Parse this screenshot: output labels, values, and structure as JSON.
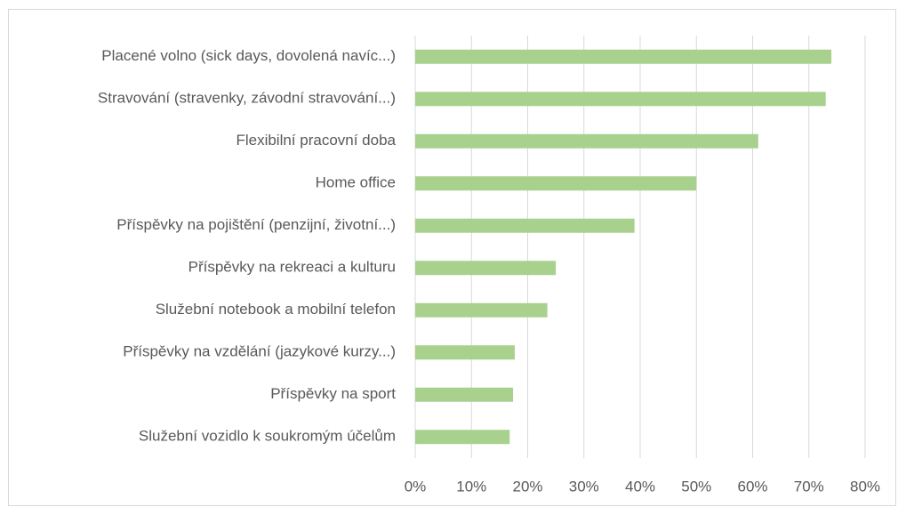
{
  "chart_data": {
    "type": "hbar",
    "categories": [
      "Placené volno (sick days, dovolená navíc...)",
      "Stravování (stravenky, závodní stravování...)",
      "Flexibilní pracovní doba",
      "Home office",
      "Příspěvky na pojištění (penzijní, životní...)",
      "Příspěvky na rekreaci a kulturu",
      "Služební notebook a mobilní telefon",
      "Příspěvky na vzdělání (jazykové kurzy...)",
      "Příspěvky na sport",
      "Služební vozidlo k soukromým účelům"
    ],
    "values": [
      74,
      73,
      61,
      50,
      39,
      25,
      23.5,
      17.7,
      17.4,
      16.8
    ],
    "color": "#a9d18e",
    "xlim": [
      0,
      80
    ],
    "xticks": [
      {
        "value": 0,
        "label": "0%"
      },
      {
        "value": 10,
        "label": "10%"
      },
      {
        "value": 20,
        "label": "20%"
      },
      {
        "value": 30,
        "label": "30%"
      },
      {
        "value": 40,
        "label": "40%"
      },
      {
        "value": 50,
        "label": "50%"
      },
      {
        "value": 60,
        "label": "60%"
      },
      {
        "value": 70,
        "label": "70%"
      },
      {
        "value": 80,
        "label": "80%"
      }
    ],
    "grid": true
  }
}
